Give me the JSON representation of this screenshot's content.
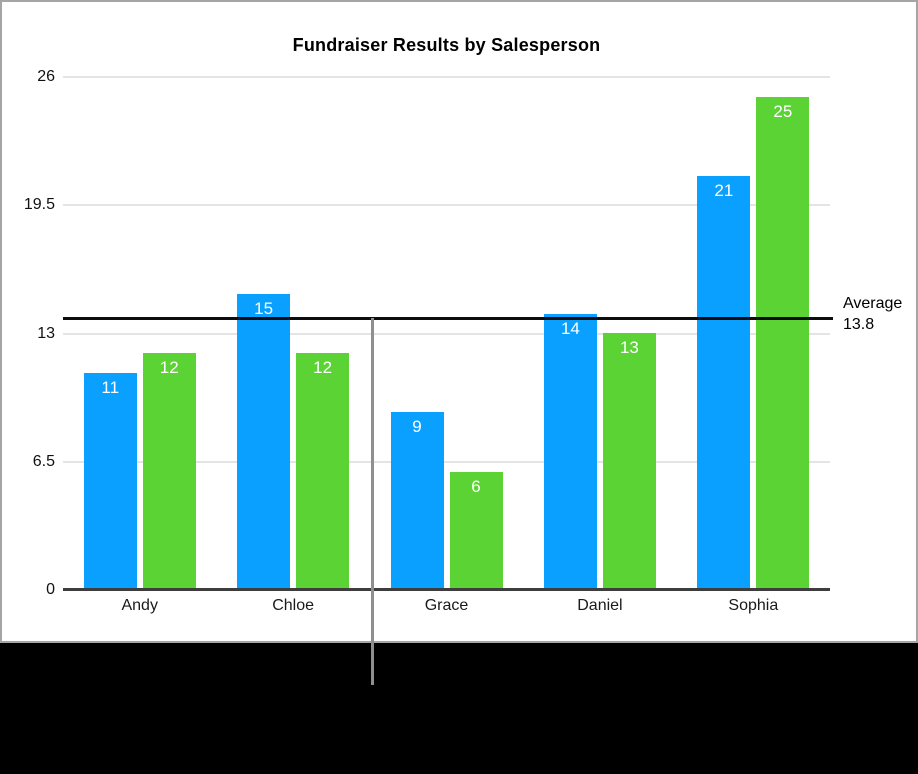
{
  "chart_data": {
    "type": "bar",
    "title": "Fundraiser Results by Salesperson",
    "categories": [
      "Andy",
      "Chloe",
      "Grace",
      "Daniel",
      "Sophia"
    ],
    "series": [
      {
        "color": "#0aa0ff",
        "values": [
          11,
          15,
          9,
          14,
          21
        ]
      },
      {
        "color": "#5bd334",
        "values": [
          12,
          12,
          6,
          13,
          25
        ]
      }
    ],
    "y_tick_labels": [
      "26",
      "19.5",
      "13",
      "6.5",
      "0"
    ],
    "ylim": [
      0,
      26
    ],
    "grid": true,
    "legend": "none",
    "bar_value_labels": true,
    "average_line": {
      "title": "Average",
      "value_label": "13.8",
      "value": 13.8,
      "color": "#0d0d0d"
    }
  },
  "colors": {
    "background": "#000000",
    "canvas": "#ffffff",
    "canvas_border": "#a5a5a5",
    "gridline": "#e4e4e4",
    "axis_line": "#3d3d3d",
    "marker_line": "#8f8f8f"
  }
}
